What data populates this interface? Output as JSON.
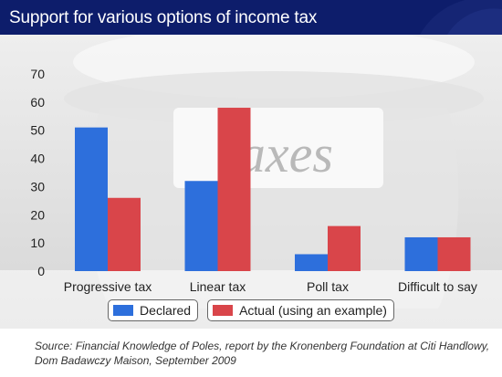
{
  "title": "Support for various options of income tax",
  "background_sign_text": "Taxes",
  "colors": {
    "title_bg": "#0d1d6b",
    "declared": "#2d6fdc",
    "actual": "#d9454a"
  },
  "legend": {
    "declared": "Declared",
    "actual": "Actual (using an example)"
  },
  "source": "Source: Financial Knowledge of Poles, report by the Kronenberg Foundation at Citi Handlowy, Dom Badawczy Maison, September 2009",
  "chart_data": {
    "type": "bar",
    "categories": [
      "Progressive tax",
      "Linear tax",
      "Poll tax",
      "Difficult to say"
    ],
    "series": [
      {
        "name": "Declared",
        "values": [
          51,
          32,
          6,
          12
        ]
      },
      {
        "name": "Actual (using an example)",
        "values": [
          26,
          58,
          16,
          12
        ]
      }
    ],
    "ylim": [
      0,
      70
    ],
    "yticks": [
      0,
      10,
      20,
      30,
      40,
      50,
      60,
      70
    ],
    "grid": false,
    "legend_position": "bottom"
  }
}
